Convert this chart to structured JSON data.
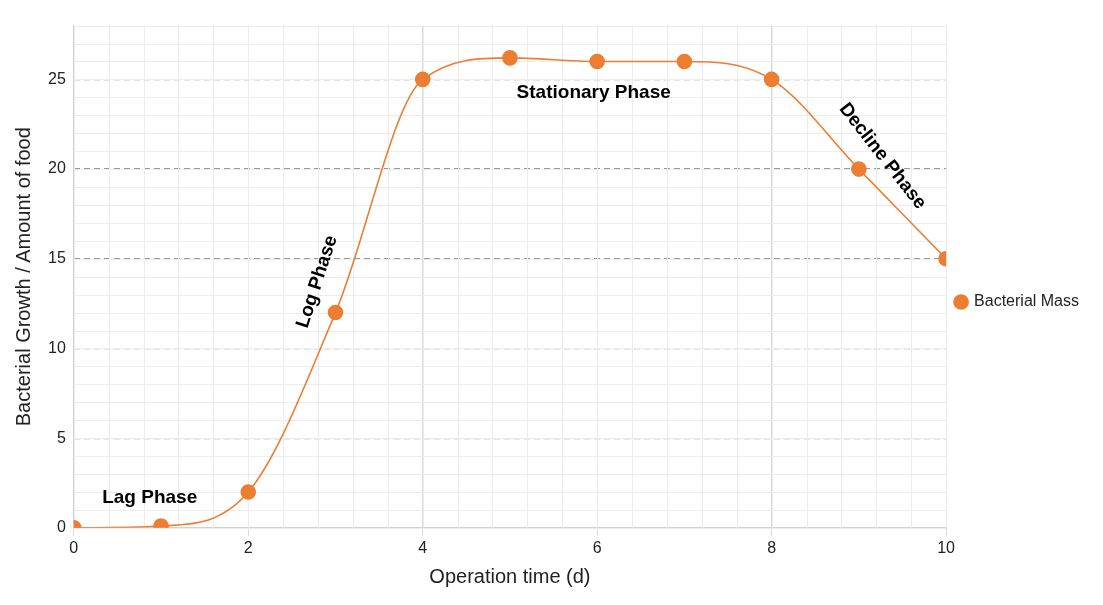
{
  "chart_data": {
    "type": "line",
    "xlabel": "Operation time (d)",
    "ylabel": "Bacterial Growth / Amount of food",
    "x": [
      0,
      1,
      2,
      3,
      4,
      5,
      6,
      7,
      8,
      9,
      10
    ],
    "series": [
      {
        "name": "Bacterial Mass",
        "color": "#ed7d31",
        "values": [
          0,
          0.1,
          2,
          12,
          25,
          26.2,
          26,
          26,
          25,
          20,
          15
        ]
      }
    ],
    "xlim": [
      0,
      10
    ],
    "xticks": [
      0,
      2,
      4,
      6,
      8,
      10
    ],
    "ylim": [
      0,
      28
    ],
    "yticks": [
      0,
      5,
      10,
      15,
      20,
      25
    ],
    "grid": true,
    "legend": "right",
    "marker": "circle",
    "line_style": "solid",
    "annotations": [
      "Lag Phase",
      "Log Phase",
      "Stationary Phase",
      "Decline Phase"
    ]
  }
}
